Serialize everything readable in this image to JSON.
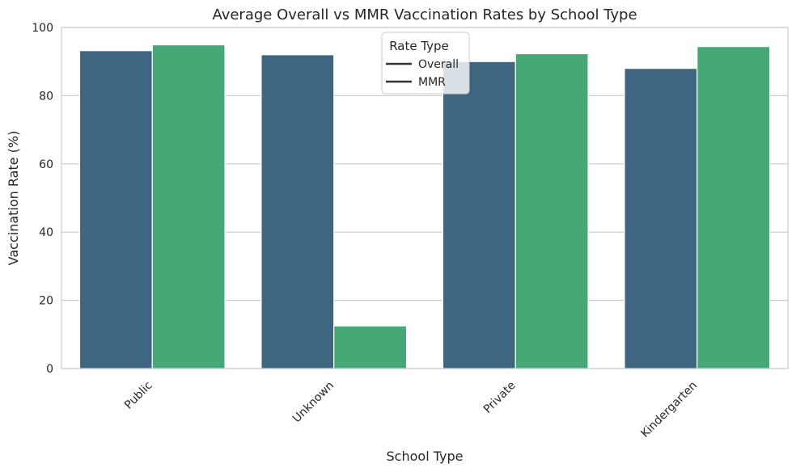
{
  "chart_data": {
    "type": "bar",
    "title": "Average Overall vs MMR Vaccination Rates by School Type",
    "xlabel": "School Type",
    "ylabel": "Vaccination Rate (%)",
    "categories": [
      "Public",
      "Unknown",
      "Private",
      "Kindergarten"
    ],
    "series": [
      {
        "name": "Overall",
        "values": [
          93.2,
          92.0,
          90.0,
          88.0
        ],
        "color": "#3e6680"
      },
      {
        "name": "MMR",
        "values": [
          94.9,
          12.5,
          92.3,
          94.4
        ],
        "color": "#45a876"
      }
    ],
    "ylim": [
      0,
      100
    ],
    "yticks": [
      0,
      20,
      40,
      60,
      80,
      100
    ],
    "grid": true,
    "legend": {
      "title": "Rate Type",
      "placement": "top-center"
    }
  }
}
